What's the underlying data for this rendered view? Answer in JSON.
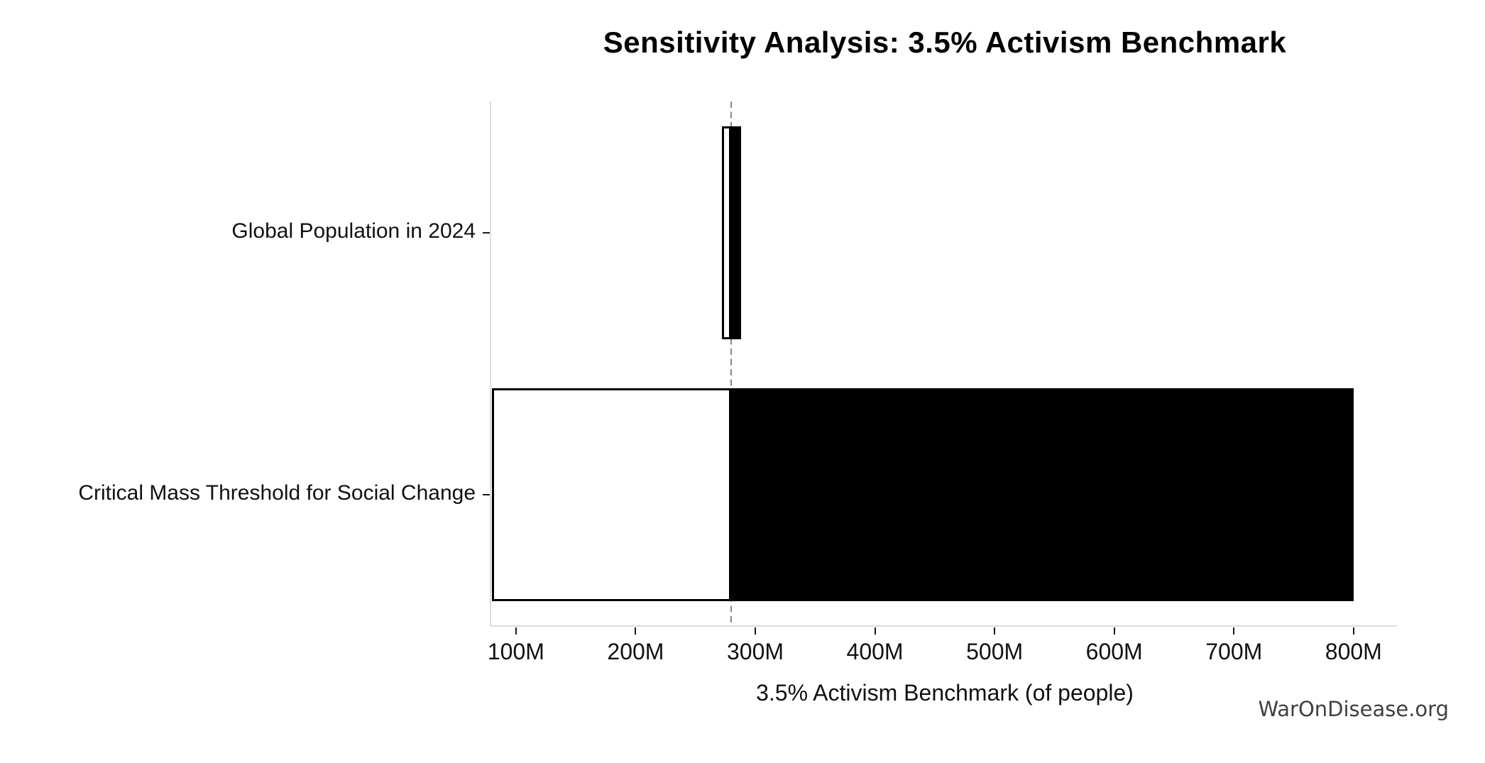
{
  "chart": {
    "title": "Sensitivity Analysis: 3.5% Activism Benchmark",
    "xlabel": "3.5% Activism Benchmark (of people)"
  },
  "watermark": {
    "text": "WarOnDisease.org"
  },
  "chart_data": {
    "type": "bar",
    "variant": "tornado-sensitivity",
    "orientation": "horizontal",
    "title": "Sensitivity Analysis: 3.5% Activism Benchmark",
    "xlabel": "3.5% Activism Benchmark (of people)",
    "unit": "M (millions of people)",
    "baseline": 280,
    "xlim": [
      79.3,
      836.3
    ],
    "grid": false,
    "legend": false,
    "x_ticks": [
      {
        "value": 100,
        "label": "100M"
      },
      {
        "value": 200,
        "label": "200M"
      },
      {
        "value": 300,
        "label": "300M"
      },
      {
        "value": 400,
        "label": "400M"
      },
      {
        "value": 500,
        "label": "500M"
      },
      {
        "value": 600,
        "label": "600M"
      },
      {
        "value": 700,
        "label": "700M"
      },
      {
        "value": 800,
        "label": "800M"
      }
    ],
    "rows": [
      {
        "category": "Global Population in 2024",
        "low": 272,
        "high": 288
      },
      {
        "category": "Critical Mass Threshold for Social Change",
        "low": 80,
        "high": 800
      }
    ],
    "colors": {
      "low_fill": "#ffffff",
      "high_fill": "#000000",
      "bar_edge": "#000000",
      "baseline_line": "#878787",
      "spine": "#dcdcdc",
      "tick": "#1a1a1a",
      "text": "#111111"
    }
  }
}
